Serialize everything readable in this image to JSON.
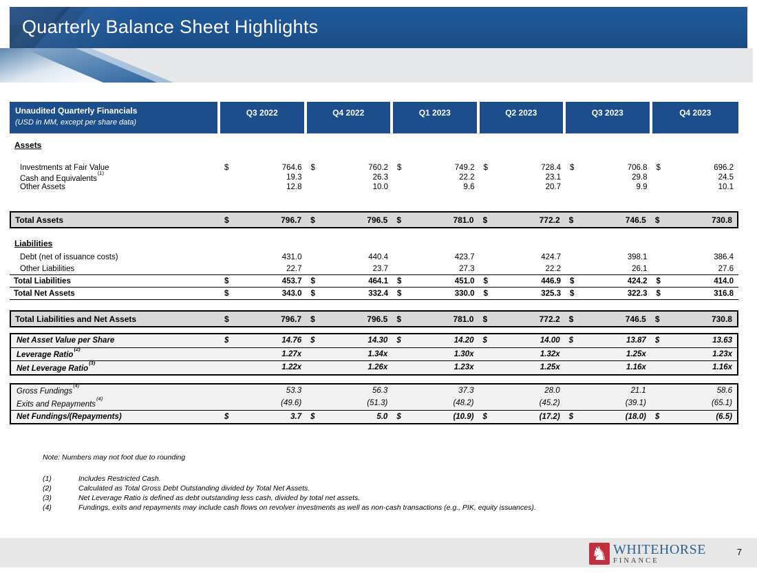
{
  "title_bar": {
    "title": "Quarterly Balance Sheet Highlights"
  },
  "colors": {
    "banner_blue": "#1d5390",
    "header_blue": "#1b4e8a",
    "total_row_gray": "#d9d9d9",
    "metrics_box_gray": "#f2f2f2",
    "logo_red": "#c0303f",
    "logo_blue": "#2d6191"
  },
  "table": {
    "currency_symbol": "$",
    "header": {
      "title": "Unaudited Quarterly Financials",
      "subtitle": "(USD in MM, except per share data)",
      "quarters": [
        "Q3 2022",
        "Q4 2022",
        "Q1 2023",
        "Q2 2023",
        "Q3 2023",
        "Q4 2023"
      ]
    },
    "sections": [
      {
        "name": "assets-section",
        "style": "plain",
        "rows": [
          {
            "kind": "heading",
            "name": "assets-heading",
            "label": "Assets"
          },
          {
            "kind": "gap",
            "h": 18
          },
          {
            "kind": "item",
            "name": "row-investments-at-fair-value",
            "label": "Investments at Fair Value",
            "dollar": true,
            "values": [
              "764.6",
              "760.2",
              "749.2",
              "728.4",
              "706.8",
              "696.2"
            ]
          },
          {
            "kind": "item",
            "name": "row-cash-and-equivalents",
            "label": "Cash and Equivalents",
            "sup": "(1)",
            "values": [
              "19.3",
              "26.3",
              "22.2",
              "23.1",
              "29.8",
              "24.5"
            ]
          },
          {
            "kind": "item",
            "name": "row-other-assets",
            "label": "Other Assets",
            "values": [
              "12.8",
              "10.0",
              "9.6",
              "20.7",
              "9.9",
              "10.1"
            ]
          },
          {
            "kind": "gap",
            "h": 28
          }
        ]
      },
      {
        "name": "total-assets-band",
        "style": "graybox",
        "rows": [
          {
            "kind": "item",
            "name": "row-total-assets",
            "label": "Total Assets",
            "dollar": true,
            "cls": "grand",
            "values": [
              "796.7",
              "796.5",
              "781.0",
              "772.2",
              "746.5",
              "730.8"
            ]
          }
        ]
      },
      {
        "name": "liabilities-section",
        "style": "plain",
        "rows": [
          {
            "kind": "heading",
            "name": "liabilities-heading",
            "label": "Liabilities"
          },
          {
            "kind": "gap",
            "h": 3
          },
          {
            "kind": "item",
            "name": "row-debt",
            "label": "Debt (net of issuance costs)",
            "cls": "tall",
            "values": [
              "431.0",
              "440.4",
              "423.7",
              "424.7",
              "398.1",
              "386.4"
            ]
          },
          {
            "kind": "item",
            "name": "row-other-liabilities",
            "label": "Other Liabilities",
            "cls": "tall underline",
            "values": [
              "22.7",
              "23.7",
              "27.3",
              "22.2",
              "26.1",
              "27.6"
            ]
          },
          {
            "kind": "item",
            "name": "row-total-liabilities",
            "label": "Total Liabilities",
            "dollar": true,
            "cls": "tall bold underline",
            "values": [
              "453.7",
              "464.1",
              "451.0",
              "446.9",
              "424.2",
              "414.0"
            ]
          },
          {
            "kind": "item",
            "name": "row-total-net-assets",
            "label": "Total Net Assets",
            "dollar": true,
            "cls": "tall bold underline",
            "values": [
              "343.0",
              "332.4",
              "330.0",
              "325.3",
              "322.3",
              "316.8"
            ]
          }
        ]
      },
      {
        "name": "total-liabilities-net-assets-band",
        "style": "graybox",
        "rows": [
          {
            "kind": "item",
            "name": "row-total-liabilities-and-net-assets",
            "label": "Total Liabilities and Net Assets",
            "dollar": true,
            "cls": "grand",
            "values": [
              "796.7",
              "796.5",
              "781.0",
              "772.2",
              "746.5",
              "730.8"
            ]
          }
        ]
      },
      {
        "name": "per-share-metrics-box",
        "style": "lightbox",
        "rows": [
          {
            "kind": "item",
            "name": "row-net-asset-value-per-share",
            "label": "Net Asset Value per Share",
            "dollar": true,
            "cls": "boxed bi",
            "values": [
              "14.76",
              "14.30",
              "14.20",
              "14.00",
              "13.87",
              "13.63"
            ]
          },
          {
            "kind": "item",
            "name": "row-leverage-ratio",
            "label": "Leverage Ratio",
            "sup": "(2)",
            "cls": "boxed bi sepline",
            "values": [
              "1.27x",
              "1.34x",
              "1.30x",
              "1.32x",
              "1.25x",
              "1.23x"
            ]
          },
          {
            "kind": "item",
            "name": "row-net-leverage-ratio",
            "label": "Net Leverage Ratio",
            "sup": "(3)",
            "cls": "boxed bi sepline",
            "values": [
              "1.22x",
              "1.26x",
              "1.23x",
              "1.25x",
              "1.16x",
              "1.16x"
            ]
          }
        ]
      },
      {
        "name": "fundings-box",
        "style": "lightbox",
        "rows": [
          {
            "kind": "item",
            "name": "row-gross-fundings",
            "label": "Gross Fundings",
            "sup": "(4)",
            "cls": "boxed it",
            "values": [
              "53.3",
              "56.3",
              "37.3",
              "28.0",
              "21.1",
              "58.6"
            ]
          },
          {
            "kind": "item",
            "name": "row-exits-and-repayments",
            "label": "Exits and Repayments",
            "sup": "(4)",
            "cls": "boxed it",
            "values": [
              "(49.6)",
              "(51.3)",
              "(48.2)",
              "(45.2)",
              "(39.1)",
              "(65.1)"
            ]
          },
          {
            "kind": "item",
            "name": "row-net-fundings-repayments",
            "label": "Net Fundings/(Repayments)",
            "dollar": true,
            "cls": "boxed bi sepline",
            "values": [
              "3.7",
              "5.0",
              "(10.9)",
              "(17.2)",
              "(18.0)",
              "(6.5)"
            ]
          }
        ]
      }
    ]
  },
  "notes": {
    "note": "Note: Numbers may not foot due to rounding",
    "items": [
      {
        "num": "(1)",
        "text": "Includes Restricted Cash."
      },
      {
        "num": "(2)",
        "text": "Calculated as Total Gross Debt Outstanding divided by Total Net Assets."
      },
      {
        "num": "(3)",
        "text": "Net Leverage Ratio is defined as debt outstanding less cash, divided by total net assets."
      },
      {
        "num": "(4)",
        "text": "Fundings, exits and repayments may include cash flows on revolver investments as well as non-cash transactions (e.g., PIK, equity issuances)."
      }
    ]
  },
  "footer": {
    "logo_icon_glyph": "♞",
    "logo_name": "WHITEHORSE",
    "logo_sub": "FINANCE",
    "page_number": "7"
  }
}
